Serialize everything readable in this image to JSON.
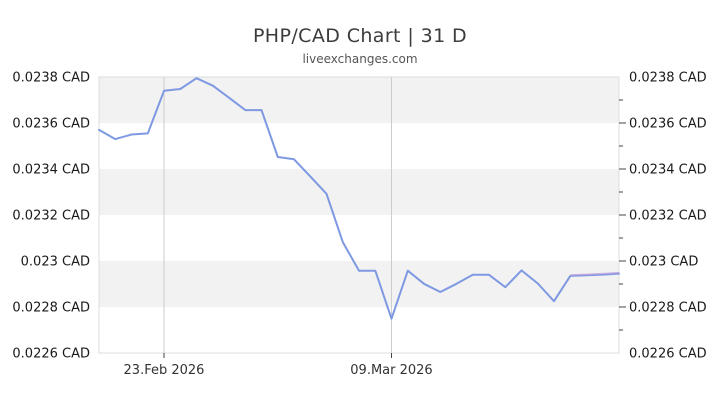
{
  "page": {
    "title": "PHP/CAD Chart | 31 D",
    "subtitle": "liveexchanges.com"
  },
  "colors": {
    "background": "#ffffff",
    "line": "#7e99e2",
    "line_end_overlay": "#c5a6de",
    "band": "#f2f2f2",
    "plot_border": "#dcdcdc",
    "vertical_grid": "#cccccc",
    "tick": "#444444",
    "title_text": "#3c3c3c",
    "subtitle_text": "#555555",
    "axis_label_text": "#1a1a1a",
    "date_label_text": "#333333"
  },
  "chart_data": {
    "type": "line",
    "title": "PHP/CAD Chart | 31 D",
    "subtitle": "liveexchanges.com",
    "series_name": "PHP/CAD",
    "unit": "CAD",
    "period": "31 D",
    "legend": "none",
    "ylim": [
      0.0226,
      0.0238
    ],
    "y_major_step": 0.0002,
    "y_minor_step": 0.0001,
    "y_tick_labels": [
      "0.0238 CAD",
      "0.0236 CAD",
      "0.0234 CAD",
      "0.0232 CAD",
      "0.023 CAD",
      "0.0228 CAD",
      "0.0226 CAD"
    ],
    "y_tick_values": [
      0.0238,
      0.0236,
      0.0234,
      0.0232,
      0.023,
      0.0228,
      0.0226
    ],
    "x_tick_labels": [
      {
        "label": "23.Feb 2026",
        "point_index": 4
      },
      {
        "label": "09.Mar 2026",
        "point_index": 18
      }
    ],
    "grid": {
      "horizontal_bands": true,
      "vertical_gridlines_at_x_ticks": true,
      "y_labels_both_sides": true
    },
    "values": [
      0.02357,
      0.02353,
      0.02355,
      0.023555,
      0.02374,
      0.023748,
      0.023795,
      0.023762,
      0.02371,
      0.023656,
      0.023656,
      0.023452,
      0.023442,
      0.023368,
      0.023292,
      0.023082,
      0.022958,
      0.022958,
      0.022749,
      0.022958,
      0.022901,
      0.022865,
      0.022901,
      0.02294,
      0.02294,
      0.022886,
      0.022959,
      0.022902,
      0.022825,
      0.022935,
      0.022938,
      0.022941,
      0.022945
    ],
    "end_overlay": {
      "from_index": 29,
      "note": "faint lavender sheen on final flat segment"
    }
  }
}
